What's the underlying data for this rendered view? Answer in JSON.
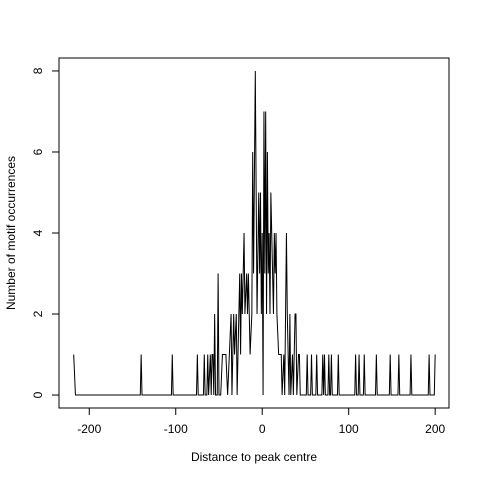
{
  "chart_data": {
    "type": "line",
    "x": [
      -218,
      -216,
      -141,
      -140,
      -139,
      -105,
      -104,
      -103,
      -76,
      -75,
      -74,
      -68,
      -67,
      -66,
      -64,
      -63,
      -62,
      -60,
      -59,
      -58,
      -57,
      -56,
      -55,
      -54,
      -52,
      -51,
      -50,
      -48,
      -46,
      -42,
      -40,
      -38,
      -36,
      -35,
      -33,
      -32,
      -30,
      -29,
      -28,
      -26,
      -25,
      -24,
      -23,
      -21,
      -20,
      -18,
      -17,
      -16,
      -14,
      -12,
      -11,
      -10,
      -8,
      -7,
      -6,
      -4,
      -3,
      -2,
      -1,
      0,
      1,
      2,
      3,
      4,
      5,
      6,
      7,
      8,
      9,
      10,
      12,
      13,
      14,
      15,
      16,
      17,
      19,
      22,
      23,
      25,
      26,
      28,
      29,
      31,
      32,
      33,
      35,
      36,
      38,
      39,
      40,
      42,
      43,
      44,
      51,
      52,
      53,
      56,
      57,
      58,
      62,
      63,
      64,
      69,
      70,
      71,
      72,
      73,
      76,
      77,
      78,
      79,
      80,
      81,
      87,
      88,
      89,
      107,
      108,
      109,
      111,
      112,
      113,
      117,
      118,
      119,
      131,
      132,
      133,
      147,
      148,
      149,
      157,
      158,
      159,
      171,
      172,
      173,
      192,
      193,
      194,
      199,
      200
    ],
    "series": [
      {
        "color": "#000000",
        "values": [
          1,
          0,
          0,
          1,
          0,
          0,
          1,
          0,
          0,
          1,
          0,
          0,
          1,
          0,
          0,
          1,
          0,
          1,
          0,
          1,
          1,
          0,
          2,
          0,
          0,
          3,
          0,
          0,
          1,
          1,
          0,
          1,
          2,
          0,
          2,
          1,
          2,
          0,
          1,
          3,
          1,
          3,
          2,
          4,
          2,
          3,
          2,
          3,
          1,
          2,
          6,
          3,
          8,
          5,
          2,
          5,
          3,
          5,
          2,
          4,
          0,
          7,
          3,
          7,
          2,
          6,
          3,
          4,
          2,
          5,
          3,
          2,
          4,
          3,
          4,
          2,
          1,
          1,
          0,
          1,
          0,
          4,
          2,
          0,
          2,
          0,
          1,
          0,
          2,
          2,
          0,
          1,
          1,
          0,
          0,
          1,
          0,
          0,
          1,
          0,
          0,
          1,
          0,
          0,
          1,
          0,
          1,
          0,
          0,
          1,
          0,
          0,
          1,
          0,
          0,
          1,
          0,
          0,
          1,
          0,
          0,
          1,
          0,
          0,
          1,
          0,
          0,
          1,
          0,
          0,
          1,
          0,
          0,
          1,
          0,
          0,
          1,
          0,
          0,
          1,
          0,
          0,
          1
        ]
      }
    ],
    "xlabel": "Distance to peak centre",
    "ylabel": "Number of motif occurrences",
    "xlim": [
      -235,
      216
    ],
    "ylim": [
      -0.32,
      8.32
    ],
    "xticks": [
      -200,
      -100,
      0,
      100,
      200
    ],
    "yticks": [
      0,
      2,
      4,
      6,
      8
    ]
  }
}
